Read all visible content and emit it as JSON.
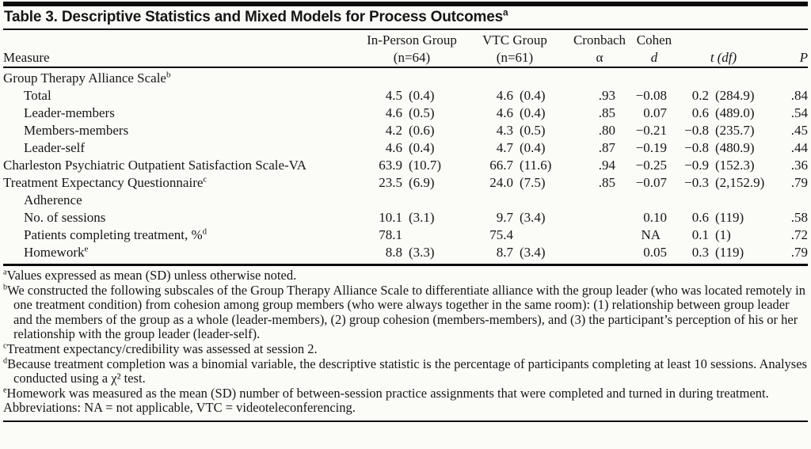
{
  "title": {
    "text": "Table 3. Descriptive Statistics and Mixed Models for Process Outcomes",
    "sup": "a"
  },
  "header": {
    "measure_label": "Measure",
    "in_person": {
      "line1": "In-Person Group",
      "line2": "(n=64)"
    },
    "vtc": {
      "line1": "VTC Group",
      "line2": "(n=61)"
    },
    "cronbach": {
      "line1": "Cronbach",
      "line2": "α"
    },
    "cohen": {
      "line1": "Cohen",
      "line2": "d"
    },
    "t_df": {
      "t": "t",
      "df": "(df)"
    },
    "p": "P"
  },
  "rows": [
    {
      "measure": "Group Therapy Alliance Scale",
      "sup": "b",
      "ip_mean": "",
      "ip_sd": "",
      "vtc_mean": "",
      "vtc_sd": "",
      "alpha": "",
      "d": "",
      "t": "",
      "df": "",
      "p": ""
    },
    {
      "measure": "Total",
      "sup": "",
      "ip_mean": "4.5",
      "ip_sd": "(0.4)",
      "vtc_mean": "4.6",
      "vtc_sd": "(0.4)",
      "alpha": ".93",
      "d": "−0.08",
      "t": "0.2",
      "df": "(284.9)",
      "p": ".84"
    },
    {
      "measure": "Leader-members",
      "sup": "",
      "ip_mean": "4.6",
      "ip_sd": "(0.5)",
      "vtc_mean": "4.6",
      "vtc_sd": "(0.4)",
      "alpha": ".85",
      "d": "0.07",
      "t": "0.6",
      "df": "(489.0)",
      "p": ".54"
    },
    {
      "measure": "Members-members",
      "sup": "",
      "ip_mean": "4.2",
      "ip_sd": "(0.6)",
      "vtc_mean": "4.3",
      "vtc_sd": "(0.5)",
      "alpha": ".80",
      "d": "−0.21",
      "t": "−0.8",
      "df": "(235.7)",
      "p": ".45"
    },
    {
      "measure": "Leader-self",
      "sup": "",
      "ip_mean": "4.6",
      "ip_sd": "(0.4)",
      "vtc_mean": "4.7",
      "vtc_sd": "(0.4)",
      "alpha": ".87",
      "d": "−0.19",
      "t": "−0.8",
      "df": "(480.9)",
      "p": ".44"
    },
    {
      "measure": "Charleston Psychiatric Outpatient Satisfaction Scale-VA",
      "sup": "",
      "ip_mean": "63.9",
      "ip_sd": "(10.7)",
      "vtc_mean": "66.7",
      "vtc_sd": "(11.6)",
      "alpha": ".94",
      "d": "−0.25",
      "t": "−0.9",
      "df": "(152.3)",
      "p": ".36"
    },
    {
      "measure": "Treatment Expectancy Questionnaire",
      "sup": "c",
      "ip_mean": "23.5",
      "ip_sd": "(6.9)",
      "vtc_mean": "24.0",
      "vtc_sd": "(7.5)",
      "alpha": ".85",
      "d": "−0.07",
      "t": "−0.3",
      "df": "(2,152.9)",
      "p": ".79"
    },
    {
      "measure": "Adherence",
      "sup": "",
      "ip_mean": "",
      "ip_sd": "",
      "vtc_mean": "",
      "vtc_sd": "",
      "alpha": "",
      "d": "",
      "t": "",
      "df": "",
      "p": ""
    },
    {
      "measure": "No. of sessions",
      "sup": "",
      "ip_mean": "10.1",
      "ip_sd": "(3.1)",
      "vtc_mean": "9.7",
      "vtc_sd": "(3.4)",
      "alpha": "",
      "d": "0.10",
      "t": "0.6",
      "df": "(119)",
      "p": ".58"
    },
    {
      "measure": "Patients completing treatment, %",
      "sup": "d",
      "ip_mean": "78.1",
      "ip_sd": "",
      "vtc_mean": "75.4",
      "vtc_sd": "",
      "alpha": "",
      "d": "NA",
      "t": "0.1",
      "df": "(1)",
      "p": ".72"
    },
    {
      "measure": "Homework",
      "sup": "e",
      "ip_mean": "8.8",
      "ip_sd": "(3.3)",
      "vtc_mean": "8.7",
      "vtc_sd": "(3.4)",
      "alpha": "",
      "d": "0.05",
      "t": "0.3",
      "df": "(119)",
      "p": ".79"
    }
  ],
  "footnotes": [
    {
      "sup": "a",
      "text": "Values expressed as mean (SD) unless otherwise noted."
    },
    {
      "sup": "b",
      "text": "We constructed the following subscales of the Group Therapy Alliance Scale to differentiate alliance with the group leader (who was located remotely in one treatment condition) from cohesion among group members (who were always together in the same room): (1) relationship between group leader and the members of the group as a whole (leader-members), (2) group cohesion (members-members), and (3) the participant’s perception of his or her relationship with the group leader (leader-self)."
    },
    {
      "sup": "c",
      "text": "Treatment expectancy/credibility was assessed at session 2."
    },
    {
      "sup": "d",
      "text": "Because treatment completion was a binomial variable, the descriptive statistic is the percentage of participants completing at least 10 sessions. Analyses conducted using a χ² test."
    },
    {
      "sup": "e",
      "text": "Homework was measured as the mean (SD) number of between-session practice assignments that were completed and turned in during treatment."
    }
  ],
  "abbreviations": "Abbreviations: NA = not applicable, VTC = videoteleconferencing.",
  "colors": {
    "background": "#fbfbf8",
    "text": "#161616",
    "rule": "#0b0b0b"
  }
}
